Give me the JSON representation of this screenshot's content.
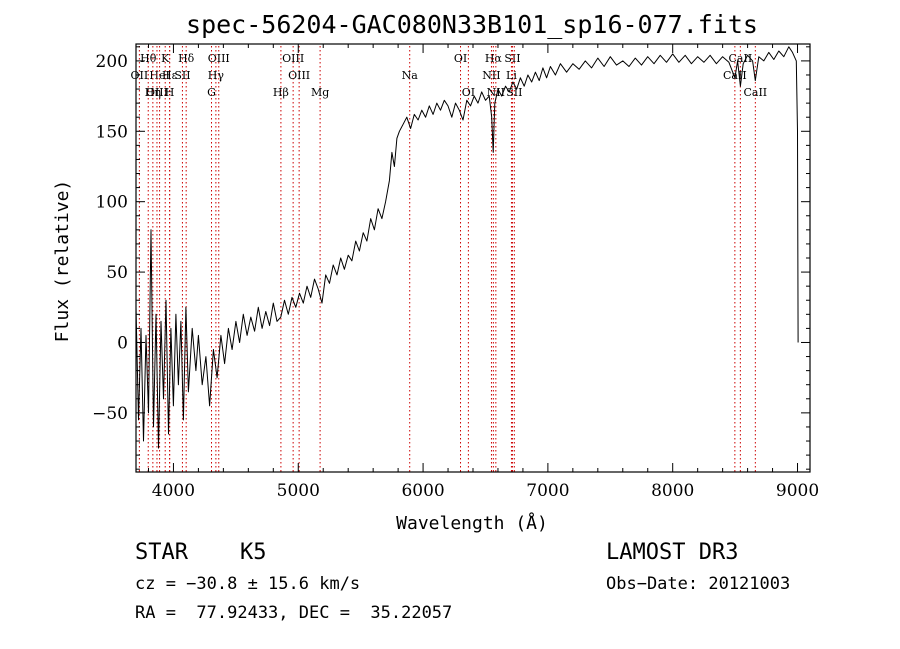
{
  "chart_data": {
    "type": "line",
    "title": "spec-56204-GAC080N33B101_sp16-077.fits",
    "xlabel": "Wavelength (Å)",
    "ylabel": "Flux (relative)",
    "xlim": [
      3700,
      9100
    ],
    "ylim": [
      -92,
      212
    ],
    "x_ticks": [
      4000,
      5000,
      6000,
      7000,
      8000,
      9000
    ],
    "y_ticks": [
      -50,
      0,
      50,
      100,
      150,
      200
    ],
    "x_tick_labels": [
      "4000",
      "5000",
      "6000",
      "7000",
      "8000",
      "9000"
    ],
    "y_tick_labels": [
      "−50",
      "0",
      "50",
      "100",
      "150",
      "200"
    ],
    "series": [
      {
        "name": "flux",
        "points": [
          [
            3700,
            25
          ],
          [
            3720,
            -55
          ],
          [
            3740,
            10
          ],
          [
            3760,
            -70
          ],
          [
            3780,
            5
          ],
          [
            3800,
            -50
          ],
          [
            3820,
            80
          ],
          [
            3840,
            -60
          ],
          [
            3860,
            20
          ],
          [
            3880,
            -75
          ],
          [
            3900,
            15
          ],
          [
            3920,
            -40
          ],
          [
            3940,
            30
          ],
          [
            3960,
            -65
          ],
          [
            3980,
            10
          ],
          [
            4000,
            -45
          ],
          [
            4020,
            20
          ],
          [
            4040,
            -30
          ],
          [
            4060,
            15
          ],
          [
            4080,
            -55
          ],
          [
            4100,
            25
          ],
          [
            4120,
            -35
          ],
          [
            4150,
            10
          ],
          [
            4180,
            -20
          ],
          [
            4200,
            5
          ],
          [
            4230,
            -30
          ],
          [
            4260,
            -10
          ],
          [
            4290,
            -45
          ],
          [
            4320,
            -5
          ],
          [
            4350,
            -25
          ],
          [
            4380,
            5
          ],
          [
            4410,
            -15
          ],
          [
            4440,
            10
          ],
          [
            4470,
            -5
          ],
          [
            4500,
            15
          ],
          [
            4530,
            0
          ],
          [
            4560,
            20
          ],
          [
            4590,
            5
          ],
          [
            4620,
            18
          ],
          [
            4650,
            8
          ],
          [
            4680,
            25
          ],
          [
            4710,
            10
          ],
          [
            4740,
            22
          ],
          [
            4770,
            12
          ],
          [
            4800,
            28
          ],
          [
            4830,
            15
          ],
          [
            4860,
            18
          ],
          [
            4890,
            30
          ],
          [
            4920,
            20
          ],
          [
            4950,
            32
          ],
          [
            4980,
            25
          ],
          [
            5010,
            35
          ],
          [
            5040,
            28
          ],
          [
            5070,
            40
          ],
          [
            5100,
            32
          ],
          [
            5130,
            45
          ],
          [
            5160,
            38
          ],
          [
            5190,
            28
          ],
          [
            5220,
            48
          ],
          [
            5250,
            42
          ],
          [
            5280,
            55
          ],
          [
            5310,
            48
          ],
          [
            5340,
            60
          ],
          [
            5370,
            52
          ],
          [
            5400,
            62
          ],
          [
            5430,
            58
          ],
          [
            5460,
            72
          ],
          [
            5490,
            65
          ],
          [
            5520,
            78
          ],
          [
            5550,
            72
          ],
          [
            5580,
            88
          ],
          [
            5610,
            80
          ],
          [
            5640,
            95
          ],
          [
            5670,
            88
          ],
          [
            5700,
            100
          ],
          [
            5730,
            115
          ],
          [
            5750,
            135
          ],
          [
            5770,
            125
          ],
          [
            5790,
            145
          ],
          [
            5810,
            150
          ],
          [
            5840,
            155
          ],
          [
            5870,
            160
          ],
          [
            5900,
            152
          ],
          [
            5930,
            162
          ],
          [
            5960,
            158
          ],
          [
            5990,
            165
          ],
          [
            6020,
            160
          ],
          [
            6050,
            168
          ],
          [
            6080,
            162
          ],
          [
            6110,
            170
          ],
          [
            6140,
            165
          ],
          [
            6170,
            172
          ],
          [
            6200,
            168
          ],
          [
            6230,
            160
          ],
          [
            6260,
            170
          ],
          [
            6290,
            165
          ],
          [
            6320,
            158
          ],
          [
            6350,
            172
          ],
          [
            6380,
            168
          ],
          [
            6410,
            175
          ],
          [
            6440,
            170
          ],
          [
            6470,
            178
          ],
          [
            6500,
            172
          ],
          [
            6530,
            175
          ],
          [
            6550,
            160
          ],
          [
            6562,
            135
          ],
          [
            6575,
            170
          ],
          [
            6600,
            180
          ],
          [
            6630,
            175
          ],
          [
            6660,
            182
          ],
          [
            6690,
            178
          ],
          [
            6720,
            185
          ],
          [
            6750,
            180
          ],
          [
            6780,
            188
          ],
          [
            6810,
            182
          ],
          [
            6840,
            190
          ],
          [
            6870,
            185
          ],
          [
            6900,
            192
          ],
          [
            6930,
            186
          ],
          [
            6960,
            195
          ],
          [
            6990,
            188
          ],
          [
            7020,
            196
          ],
          [
            7060,
            190
          ],
          [
            7100,
            198
          ],
          [
            7150,
            192
          ],
          [
            7200,
            198
          ],
          [
            7250,
            194
          ],
          [
            7300,
            200
          ],
          [
            7350,
            195
          ],
          [
            7400,
            202
          ],
          [
            7450,
            196
          ],
          [
            7500,
            203
          ],
          [
            7550,
            197
          ],
          [
            7600,
            200
          ],
          [
            7650,
            196
          ],
          [
            7700,
            202
          ],
          [
            7750,
            197
          ],
          [
            7800,
            203
          ],
          [
            7850,
            198
          ],
          [
            7900,
            204
          ],
          [
            7950,
            199
          ],
          [
            8000,
            205
          ],
          [
            8050,
            199
          ],
          [
            8100,
            204
          ],
          [
            8150,
            198
          ],
          [
            8200,
            203
          ],
          [
            8250,
            199
          ],
          [
            8300,
            204
          ],
          [
            8350,
            198
          ],
          [
            8400,
            203
          ],
          [
            8450,
            199
          ],
          [
            8498,
            188
          ],
          [
            8520,
            200
          ],
          [
            8542,
            182
          ],
          [
            8565,
            198
          ],
          [
            8600,
            204
          ],
          [
            8640,
            200
          ],
          [
            8662,
            186
          ],
          [
            8690,
            203
          ],
          [
            8730,
            200
          ],
          [
            8770,
            206
          ],
          [
            8810,
            201
          ],
          [
            8850,
            207
          ],
          [
            8890,
            203
          ],
          [
            8930,
            210
          ],
          [
            8960,
            206
          ],
          [
            8990,
            200
          ],
          [
            9000,
            150
          ],
          [
            9005,
            0
          ]
        ]
      }
    ],
    "line_markers": [
      {
        "label": "Hθ",
        "x": 3798,
        "row": 0
      },
      {
        "label": "K",
        "x": 3934,
        "row": 0
      },
      {
        "label": "Hδ",
        "x": 4102,
        "row": 0
      },
      {
        "label": "OII",
        "x": 3727,
        "row": 1
      },
      {
        "label": "HeI",
        "x": 3889,
        "row": 1
      },
      {
        "label": "SII",
        "x": 4072,
        "row": 1
      },
      {
        "label": "OIII",
        "x": 4363,
        "row": 0
      },
      {
        "label": "Hγ",
        "x": 4340,
        "row": 1
      },
      {
        "label": "G",
        "x": 4305,
        "row": 2
      },
      {
        "label": "OIII",
        "x": 4959,
        "row": 0
      },
      {
        "label": "OIII",
        "x": 5007,
        "row": 1
      },
      {
        "label": "Hβ",
        "x": 4861,
        "row": 2
      },
      {
        "label": "Mg",
        "x": 5175,
        "row": 2
      },
      {
        "label": "Na",
        "x": 5893,
        "row": 1
      },
      {
        "label": "OI",
        "x": 6300,
        "row": 0
      },
      {
        "label": "OI",
        "x": 6363,
        "row": 2
      },
      {
        "label": "Hα",
        "x": 6563,
        "row": 0
      },
      {
        "label": "NII",
        "x": 6548,
        "row": 1
      },
      {
        "label": "NII",
        "x": 6583,
        "row": 2
      },
      {
        "label": "SII",
        "x": 6716,
        "row": 0
      },
      {
        "label": "Li",
        "x": 6708,
        "row": 1
      },
      {
        "label": "SII",
        "x": 6731,
        "row": 2
      },
      {
        "label": "CaII",
        "x": 8542,
        "row": 0
      },
      {
        "label": "CaII",
        "x": 8498,
        "row": 1
      },
      {
        "label": "CaII",
        "x": 8662,
        "row": 2
      },
      {
        "label": "OIII",
        "x": 3868,
        "row": 2
      },
      {
        "label": "Hη",
        "x": 3835,
        "row": 2
      },
      {
        "label": "H",
        "x": 3969,
        "row": 2
      },
      {
        "label": "Hε",
        "x": 3970,
        "row": 1
      }
    ],
    "line_marker_color": "#cc0000"
  },
  "info": {
    "object_class": "STAR",
    "subclass": "K5",
    "redshift_text": "cz = −30.8 ± 15.6 km/s",
    "coords_text": "RA =  77.92433, DEC =  35.22057",
    "survey": "LAMOST DR3",
    "obs_date": "Obs−Date: 20121003"
  }
}
